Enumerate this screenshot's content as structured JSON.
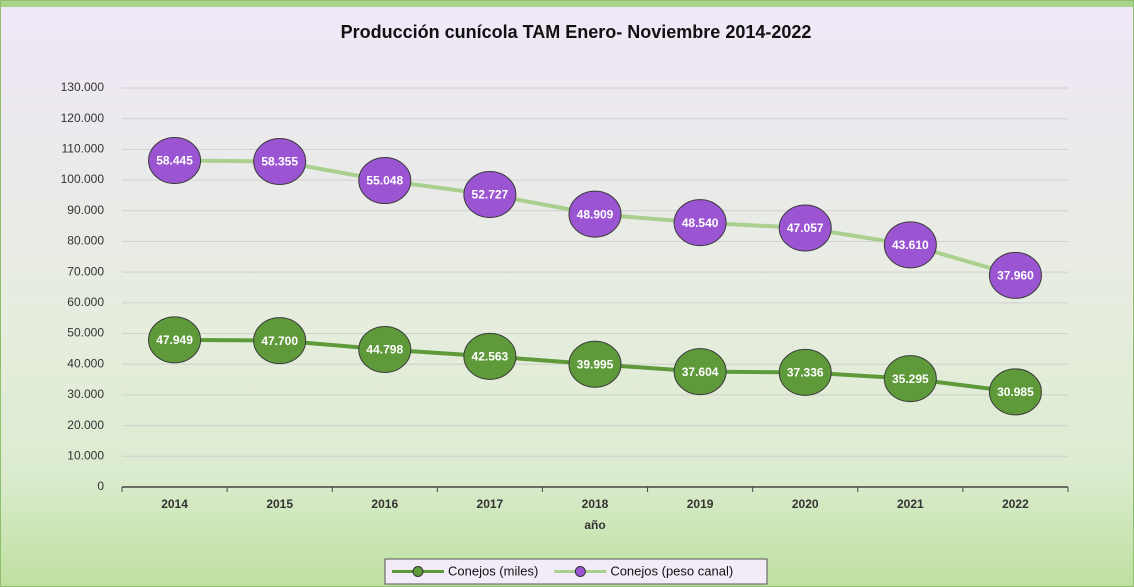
{
  "chart_data": {
    "type": "line",
    "stacked": true,
    "title": "Producción cunícola TAM Enero- Noviembre 2014-2022",
    "x_label": "año",
    "categories": [
      "2014",
      "2015",
      "2016",
      "2017",
      "2018",
      "2019",
      "2020",
      "2021",
      "2022"
    ],
    "series": [
      {
        "name": "Conejos (miles)",
        "color": "#5e9a3a",
        "marker_color": "#5e9a3a",
        "values": [
          47949,
          47700,
          44798,
          42563,
          39995,
          37604,
          37336,
          35295,
          30985
        ],
        "value_labels": [
          "47.949",
          "47.700",
          "44.798",
          "42.563",
          "39.995",
          "37.604",
          "37.336",
          "35.295",
          "30.985"
        ]
      },
      {
        "name": "Conejos (peso canal)",
        "color": "#a9d08e",
        "marker_color": "#9b55d3",
        "values": [
          58445,
          58355,
          55048,
          52727,
          48909,
          48540,
          47057,
          43610,
          37960
        ],
        "value_labels": [
          "58.445",
          "58.355",
          "55.048",
          "52.727",
          "48.909",
          "48.540",
          "47.057",
          "43.610",
          "37.960"
        ]
      }
    ],
    "ylim": [
      0,
      130000
    ],
    "yticks": [
      0,
      {
        "value": 10000,
        "label": "10.000"
      },
      {
        "value": 20000,
        "label": "20.000"
      },
      {
        "value": 30000,
        "label": "30.000"
      },
      {
        "value": 40000,
        "label": "40.000"
      },
      {
        "value": 50000,
        "label": "50.000"
      },
      {
        "value": 60000,
        "label": "60.000"
      },
      {
        "value": 70000,
        "label": "70.000"
      },
      {
        "value": 80000,
        "label": "80.000"
      },
      {
        "value": 90000,
        "label": "90.000"
      },
      {
        "value": 100000,
        "label": "100.000"
      },
      {
        "value": 110000,
        "label": "110.000"
      },
      {
        "value": 120000,
        "label": "120.000"
      },
      {
        "value": 130000,
        "label": "130.000"
      }
    ],
    "grid": true,
    "legend": "bottom"
  }
}
